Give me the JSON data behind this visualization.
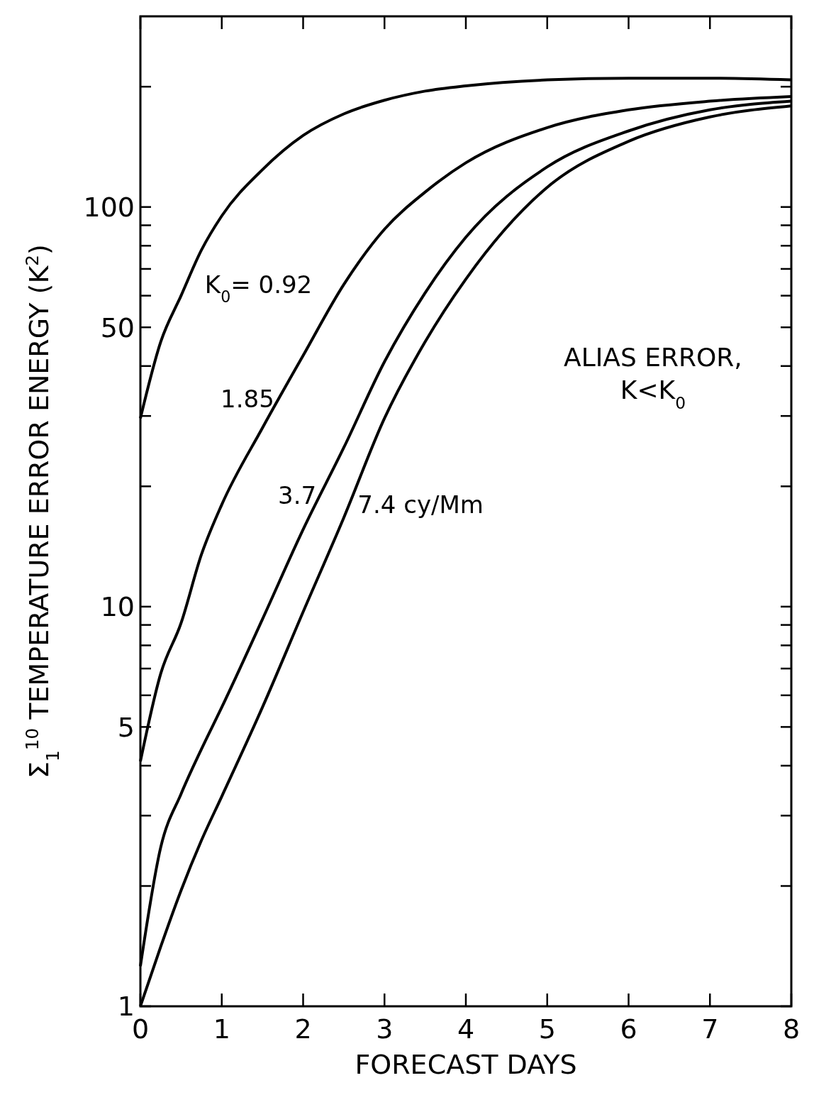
{
  "chart_data": {
    "type": "line",
    "xlabel": "FORECAST DAYS",
    "ylabel": "Σ$_{1}$$^{10}$ TEMPERATURE ERROR ENERGY (K$^{2}$)",
    "log": "y",
    "xlim": [
      0,
      8
    ],
    "xticks": [
      0,
      1,
      2,
      3,
      4,
      5,
      6,
      7,
      8
    ],
    "ylim": [
      1,
      300
    ],
    "yticks": [
      1,
      {
        "value": 2,
        "label": null
      },
      {
        "value": 3,
        "label": null
      },
      {
        "value": 4,
        "label": null
      },
      5,
      {
        "value": 6,
        "label": null
      },
      {
        "value": 7,
        "label": null
      },
      {
        "value": 8,
        "label": null
      },
      {
        "value": 9,
        "label": null
      },
      10,
      {
        "value": 20,
        "label": null
      },
      {
        "value": 30,
        "label": null
      },
      {
        "value": 40,
        "label": null
      },
      50,
      {
        "value": 60,
        "label": null
      },
      {
        "value": 70,
        "label": null
      },
      {
        "value": 80,
        "label": null
      },
      {
        "value": 90,
        "label": null
      },
      100,
      {
        "value": 200,
        "label": null
      }
    ],
    "grid": false,
    "marker": "none",
    "line_style": "solid",
    "x": [
      0,
      0.25,
      0.5,
      0.75,
      1,
      1.5,
      2,
      2.5,
      3,
      3.5,
      4,
      5,
      6,
      7,
      8
    ],
    "series": [
      {
        "name": "K$_{0}$= 0.92",
        "color": "#000000",
        "values": [
          29.6,
          46,
          60,
          78,
          95,
          124,
          151,
          171,
          185,
          195,
          201,
          208,
          210,
          210,
          208
        ]
      },
      {
        "name": "1.85",
        "color": "#000000",
        "values": [
          4.1,
          6.8,
          9.1,
          13.5,
          18,
          28,
          42.5,
          64,
          88,
          109,
          129,
          158,
          175,
          184,
          189
        ]
      },
      {
        "name": "3.7",
        "color": "#000000",
        "values": [
          1.26,
          2.5,
          3.4,
          4.4,
          5.6,
          9.3,
          15.6,
          25,
          41,
          61,
          84,
          126,
          155,
          175,
          184
        ]
      },
      {
        "name": "7.4 cy/Mm",
        "color": "#000000",
        "values": [
          1.0,
          1.41,
          1.95,
          2.6,
          3.35,
          5.6,
          9.7,
          16.7,
          29.6,
          46,
          66,
          112,
          146,
          168,
          179
        ]
      }
    ],
    "annotations": [
      "ALIAS ERROR,",
      "K<K$_{0}$"
    ]
  }
}
